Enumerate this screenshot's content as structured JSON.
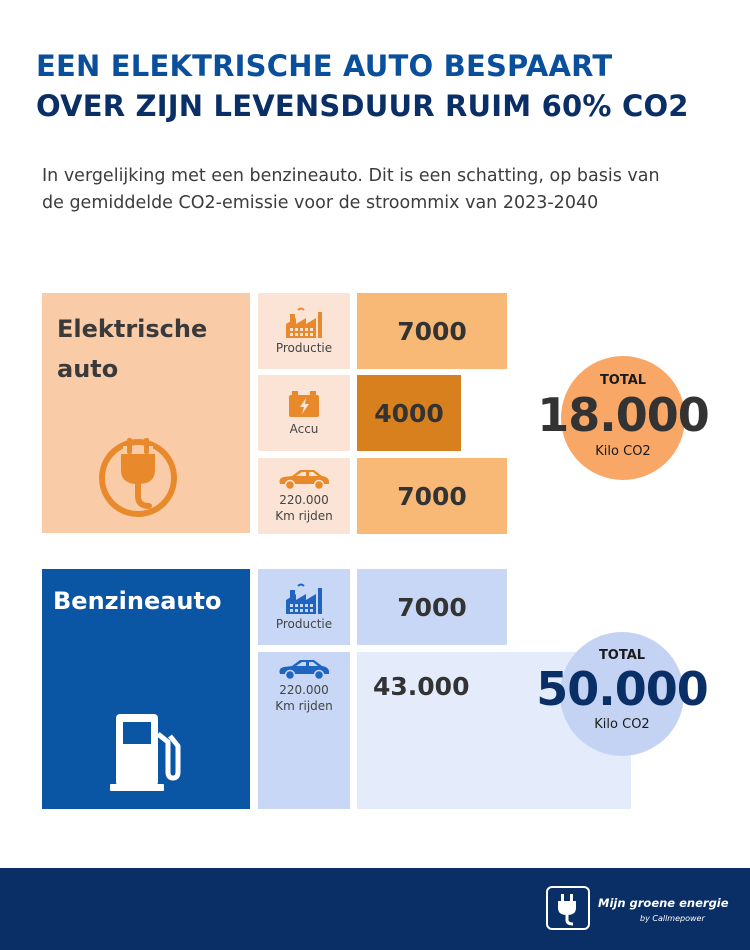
{
  "header": {
    "title_line1": "EEN ELEKTRISCHE AUTO BESPAART",
    "title_line2": "OVER ZIJN LEVENSDUUR RUIM 60% CO2",
    "subtitle": "In vergelijking met een benzineauto. Dit is een schatting, op basis van de gemiddelde CO2-emissie voor de stroommix van 2023-2040"
  },
  "chart_data": {
    "type": "bar",
    "series": [
      {
        "name": "Elektrische auto",
        "categories": [
          "Productie",
          "Accu",
          "220.000 Km rijden"
        ],
        "values": [
          7000,
          4000,
          7000
        ],
        "value_labels": [
          "7000",
          "4000",
          "7000"
        ],
        "total": 18000,
        "total_label": "18.000"
      },
      {
        "name": "Benzineauto",
        "categories": [
          "Productie",
          "220.000 Km rijden"
        ],
        "values": [
          7000,
          43000
        ],
        "value_labels": [
          "7000",
          "43.000"
        ],
        "total": 50000,
        "total_label": "50.000"
      }
    ],
    "total_heading": "TOTAL",
    "unit": "Kilo CO2",
    "colors": {
      "ev_panel": "#f9cba7",
      "ev_icon_bg": "#fbe4d6",
      "ev_bar": "#f7b975",
      "ev_bar_accent": "#d9801e",
      "ev_circle": "#f8a767",
      "ev_icon": "#e88a2c",
      "petrol_panel": "#0a55a4",
      "petrol_icon_bg": "#c8d7f5",
      "petrol_bar": "#c8d7f5",
      "petrol_bar_light": "#e4ecfc",
      "petrol_circle": "#c4d3f3",
      "petrol_icon": "#1e64c0",
      "total_ev_text": "#333333",
      "total_petrol_text": "#0a2f66"
    }
  },
  "icons": {
    "ev_panel": "ev-plug-icon",
    "petrol_panel": "fuel-pump-icon",
    "productie": "factory-icon",
    "accu": "battery-icon",
    "rijden": "car-icon"
  },
  "ev": {
    "label_line1": "Elektrische",
    "label_line2": "auto",
    "productie_label": "Productie",
    "accu_label": "Accu",
    "rijden_label_line1": "220.000",
    "rijden_label_line2": "Km rijden"
  },
  "petrol": {
    "label": "Benzineauto",
    "productie_label": "Productie",
    "rijden_label_line1": "220.000",
    "rijden_label_line2": "Km rijden"
  },
  "footer": {
    "brand": "Mijn groene energie",
    "by": "by Callmepower"
  }
}
